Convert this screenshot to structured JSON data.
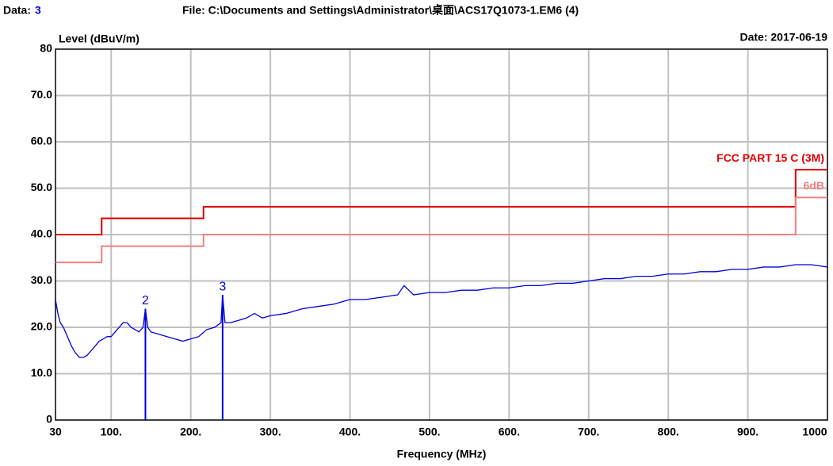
{
  "chart_data": {
    "type": "line",
    "data_label": "Data:",
    "data_number": "3",
    "file": "File: C:\\Documents and Settings\\Administrator\\桌面\\ACS17Q1073-1.EM6  (4)",
    "date": "Date: 2017-06-19",
    "ylabel": "Level (dBuV/m)",
    "xlabel": "Frequency (MHz)",
    "xlim": [
      30,
      1000
    ],
    "ylim": [
      0,
      80
    ],
    "xticks": [
      30,
      {
        "value": 100,
        "label": "100."
      },
      {
        "value": 200,
        "label": "200."
      },
      {
        "value": 300,
        "label": "300."
      },
      {
        "value": 400,
        "label": "400."
      },
      {
        "value": 500,
        "label": "500."
      },
      {
        "value": 600,
        "label": "600."
      },
      {
        "value": 700,
        "label": "700."
      },
      {
        "value": 800,
        "label": "800."
      },
      {
        "value": 900,
        "label": "900."
      },
      1000
    ],
    "yticks": [
      0,
      {
        "value": 10,
        "label": "10.0"
      },
      {
        "value": 20,
        "label": "20.0"
      },
      {
        "value": 30,
        "label": "30.0"
      },
      {
        "value": 40,
        "label": "40.0"
      },
      {
        "value": 50,
        "label": "50.0"
      },
      {
        "value": 60,
        "label": "60.0"
      },
      {
        "value": 70,
        "label": "70.0"
      },
      80
    ],
    "grid": true,
    "series": [
      {
        "name": "FCC PART 15 C (3M)",
        "color": "#e00000",
        "x": [
          30,
          88,
          88,
          216,
          216,
          960,
          960,
          1000
        ],
        "values": [
          40,
          40,
          43.5,
          43.5,
          46,
          46,
          54,
          54
        ]
      },
      {
        "name": "6dB",
        "color": "#f08080",
        "x": [
          30,
          88,
          88,
          216,
          216,
          960,
          960,
          1000
        ],
        "values": [
          34,
          34,
          37.5,
          37.5,
          40,
          40,
          48,
          48
        ]
      },
      {
        "color": "#0000dd",
        "x": [
          30,
          33,
          36,
          40,
          45,
          50,
          55,
          60,
          65,
          70,
          75,
          80,
          85,
          90,
          95,
          100,
          105,
          110,
          115,
          120,
          125,
          130,
          135,
          140,
          143,
          146,
          150,
          160,
          170,
          180,
          190,
          200,
          210,
          220,
          230,
          238,
          240,
          243,
          250,
          260,
          270,
          280,
          290,
          300,
          320,
          340,
          360,
          380,
          400,
          420,
          440,
          460,
          468,
          480,
          500,
          520,
          540,
          560,
          580,
          600,
          620,
          640,
          660,
          680,
          700,
          720,
          740,
          760,
          780,
          800,
          820,
          840,
          860,
          880,
          900,
          920,
          940,
          960,
          980,
          1000
        ],
        "values": [
          26,
          23,
          21,
          20,
          18,
          16,
          14.5,
          13.5,
          13.5,
          14,
          15,
          16,
          17,
          17.5,
          18,
          18,
          19,
          20,
          21,
          21,
          20,
          19.5,
          19,
          20,
          24,
          20,
          19,
          18.5,
          18,
          17.5,
          17,
          17.5,
          18,
          19.5,
          20,
          21,
          27,
          21,
          21,
          21.5,
          22,
          23,
          22,
          22.5,
          23,
          24,
          24.5,
          25,
          26,
          26,
          26.5,
          27,
          29,
          27,
          27.5,
          27.5,
          28,
          28,
          28.5,
          28.5,
          29,
          29,
          29.5,
          29.5,
          30,
          30.5,
          30.5,
          31,
          31,
          31.5,
          31.5,
          32,
          32,
          32.5,
          32.5,
          33,
          33,
          33.5,
          33.5,
          33
        ]
      }
    ],
    "markers": [
      {
        "label": "2",
        "x": 143,
        "value": 24,
        "color": "#0000dd"
      },
      {
        "label": "3",
        "x": 240,
        "value": 27,
        "color": "#0000dd"
      }
    ]
  }
}
